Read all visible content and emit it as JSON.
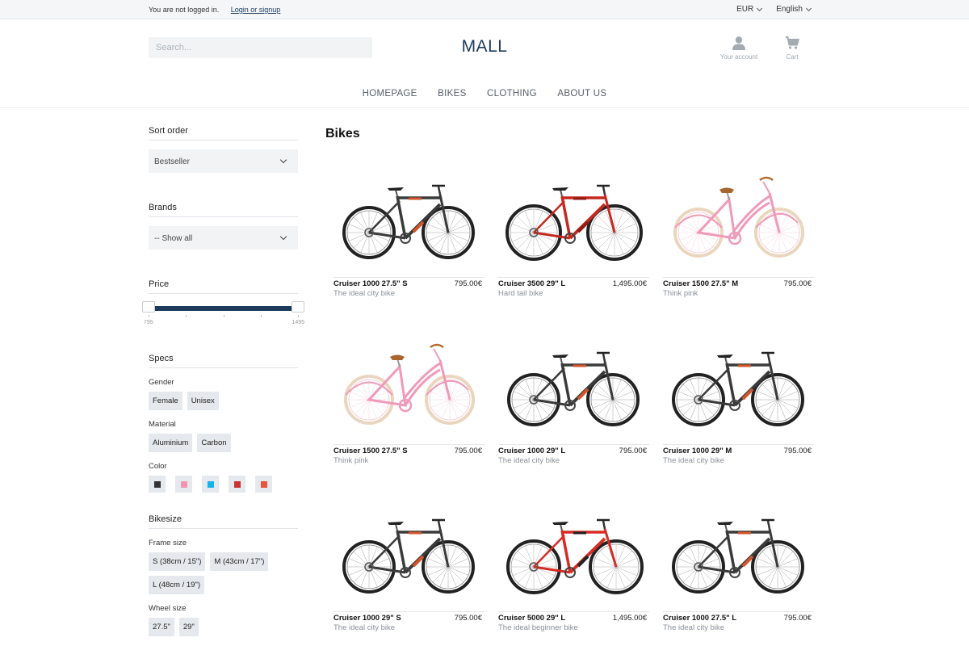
{
  "topbar": {
    "status": "You are not logged in.",
    "login_link": "Login or signup",
    "currency": "EUR",
    "language": "English"
  },
  "header": {
    "search_placeholder": "Search...",
    "logo": "MALL",
    "account_label": "Your account",
    "cart_label": "Cart",
    "account_icon": "user-icon",
    "cart_icon": "cart-icon"
  },
  "nav": [
    "HOMEPAGE",
    "BIKES",
    "CLOTHING",
    "ABOUT US"
  ],
  "sidebar": {
    "sort": {
      "title": "Sort order",
      "value": "Bestseller"
    },
    "brands": {
      "title": "Brands",
      "value": "-- Show all"
    },
    "price": {
      "title": "Price",
      "min_label": "795",
      "max_label": "1495",
      "range_low": 795,
      "range_high": 1495
    },
    "specs": {
      "title": "Specs",
      "gender": {
        "label": "Gender",
        "options": [
          "Female",
          "Unisex"
        ]
      },
      "material": {
        "label": "Material",
        "options": [
          "Aluminium",
          "Carbon"
        ]
      },
      "color": {
        "label": "Color",
        "swatches": [
          "#333333",
          "#f095b0",
          "#16b4e6",
          "#c73232",
          "#e8543a"
        ]
      }
    },
    "bikesize": {
      "title": "Bikesize",
      "frame": {
        "label": "Frame size",
        "options": [
          "S (38cm / 15\")",
          "M (43cm / 17\")",
          "L (48cm / 19\")"
        ]
      },
      "wheel": {
        "label": "Wheel size",
        "options": [
          "27.5\"",
          "29\""
        ]
      }
    }
  },
  "main": {
    "title": "Bikes",
    "products": [
      {
        "name": "Cruiser 1000 27.5\" S",
        "price": "795.00€",
        "desc": "The ideal city bike",
        "type": "dark"
      },
      {
        "name": "Cruiser 3500 29\" L",
        "price": "1,495.00€",
        "desc": "Hard tail bike",
        "type": "red-mtb"
      },
      {
        "name": "Cruiser 1500 27.5\" M",
        "price": "795.00€",
        "desc": "Think pink",
        "type": "pink"
      },
      {
        "name": "Cruiser 1500 27.5\" S",
        "price": "795.00€",
        "desc": "Think pink",
        "type": "pink"
      },
      {
        "name": "Cruiser 1000 29\" L",
        "price": "795.00€",
        "desc": "The ideal city bike",
        "type": "dark"
      },
      {
        "name": "Cruiser 1000 29\" M",
        "price": "795.00€",
        "desc": "The ideal city bike",
        "type": "dark"
      },
      {
        "name": "Cruiser 1000 29\" S",
        "price": "795.00€",
        "desc": "The ideal city bike",
        "type": "dark"
      },
      {
        "name": "Cruiser 5000 29\" L",
        "price": "1,495.00€",
        "desc": "The ideal beginner bike",
        "type": "red-full"
      },
      {
        "name": "Cruiser 1000 27.5\" L",
        "price": "795.00€",
        "desc": "The ideal city bike",
        "type": "dark"
      }
    ]
  }
}
